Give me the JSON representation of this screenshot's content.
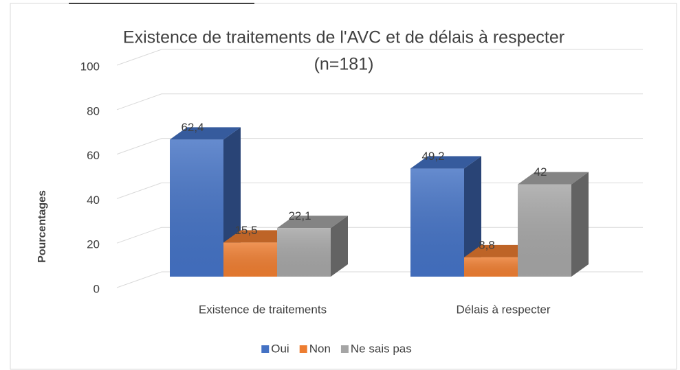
{
  "chart_data": {
    "type": "bar3d",
    "title": "Existence de traitements de l'AVC et de délais à respecter",
    "subtitle": "(n=181)",
    "y_label": "Pourcentages",
    "categories": [
      "Existence de traitements",
      "Délais à respecter"
    ],
    "series": [
      {
        "name": "Oui",
        "color": "#4472c4",
        "values": [
          62.4,
          49.2
        ],
        "value_labels": [
          "62,4",
          "49,2"
        ]
      },
      {
        "name": "Non",
        "color": "#ed7d31",
        "values": [
          15.5,
          8.8
        ],
        "value_labels": [
          "15,5",
          "8,8"
        ]
      },
      {
        "name": "Ne sais pas",
        "color": "#a5a5a5",
        "values": [
          22.1,
          42
        ],
        "value_labels": [
          "22,1",
          "42"
        ]
      }
    ],
    "ylim": [
      0,
      100
    ],
    "yticks": [
      0,
      20,
      40,
      60,
      80,
      100
    ],
    "grid": true,
    "legend": "bottom"
  }
}
